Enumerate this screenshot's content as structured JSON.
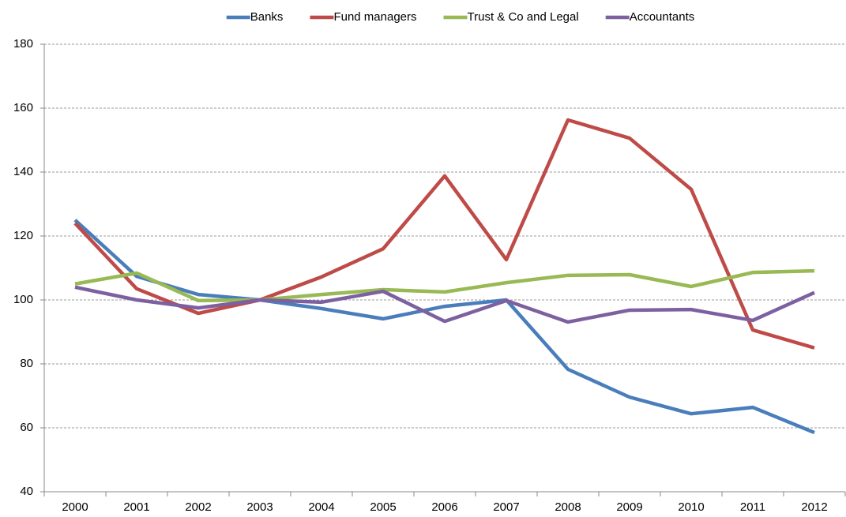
{
  "chart_data": {
    "type": "line",
    "categories": [
      "2000",
      "2001",
      "2002",
      "2003",
      "2004",
      "2005",
      "2006",
      "2007",
      "2008",
      "2009",
      "2010",
      "2011",
      "2012"
    ],
    "series": [
      {
        "name": "Banks",
        "color": "#4a7ebb",
        "values": [
          125,
          107.4,
          101.7,
          100,
          97.3,
          94.1,
          98,
          100,
          78.3,
          69.6,
          64.4,
          66.4,
          58.5
        ]
      },
      {
        "name": "Fund managers",
        "color": "#be4b48",
        "values": [
          124,
          103.5,
          95.8,
          100,
          107.2,
          116,
          138.8,
          112.6,
          156.3,
          150.6,
          134.6,
          90.6,
          85
        ]
      },
      {
        "name": "Trust & Co and Legal",
        "color": "#98b954",
        "values": [
          105,
          108.4,
          99.8,
          100,
          101.7,
          103.2,
          102.5,
          105.4,
          107.7,
          107.9,
          104.2,
          108.6,
          109.1
        ]
      },
      {
        "name": "Accountants",
        "color": "#7d60a0",
        "values": [
          104,
          100,
          97.5,
          100,
          99.3,
          102.7,
          93.3,
          99.8,
          93.1,
          96.8,
          97,
          93.6,
          102.3
        ]
      }
    ],
    "ylim": [
      40,
      180
    ],
    "yticks": [
      40,
      60,
      80,
      100,
      120,
      140,
      160,
      180
    ],
    "grid": true,
    "legend": "top"
  }
}
